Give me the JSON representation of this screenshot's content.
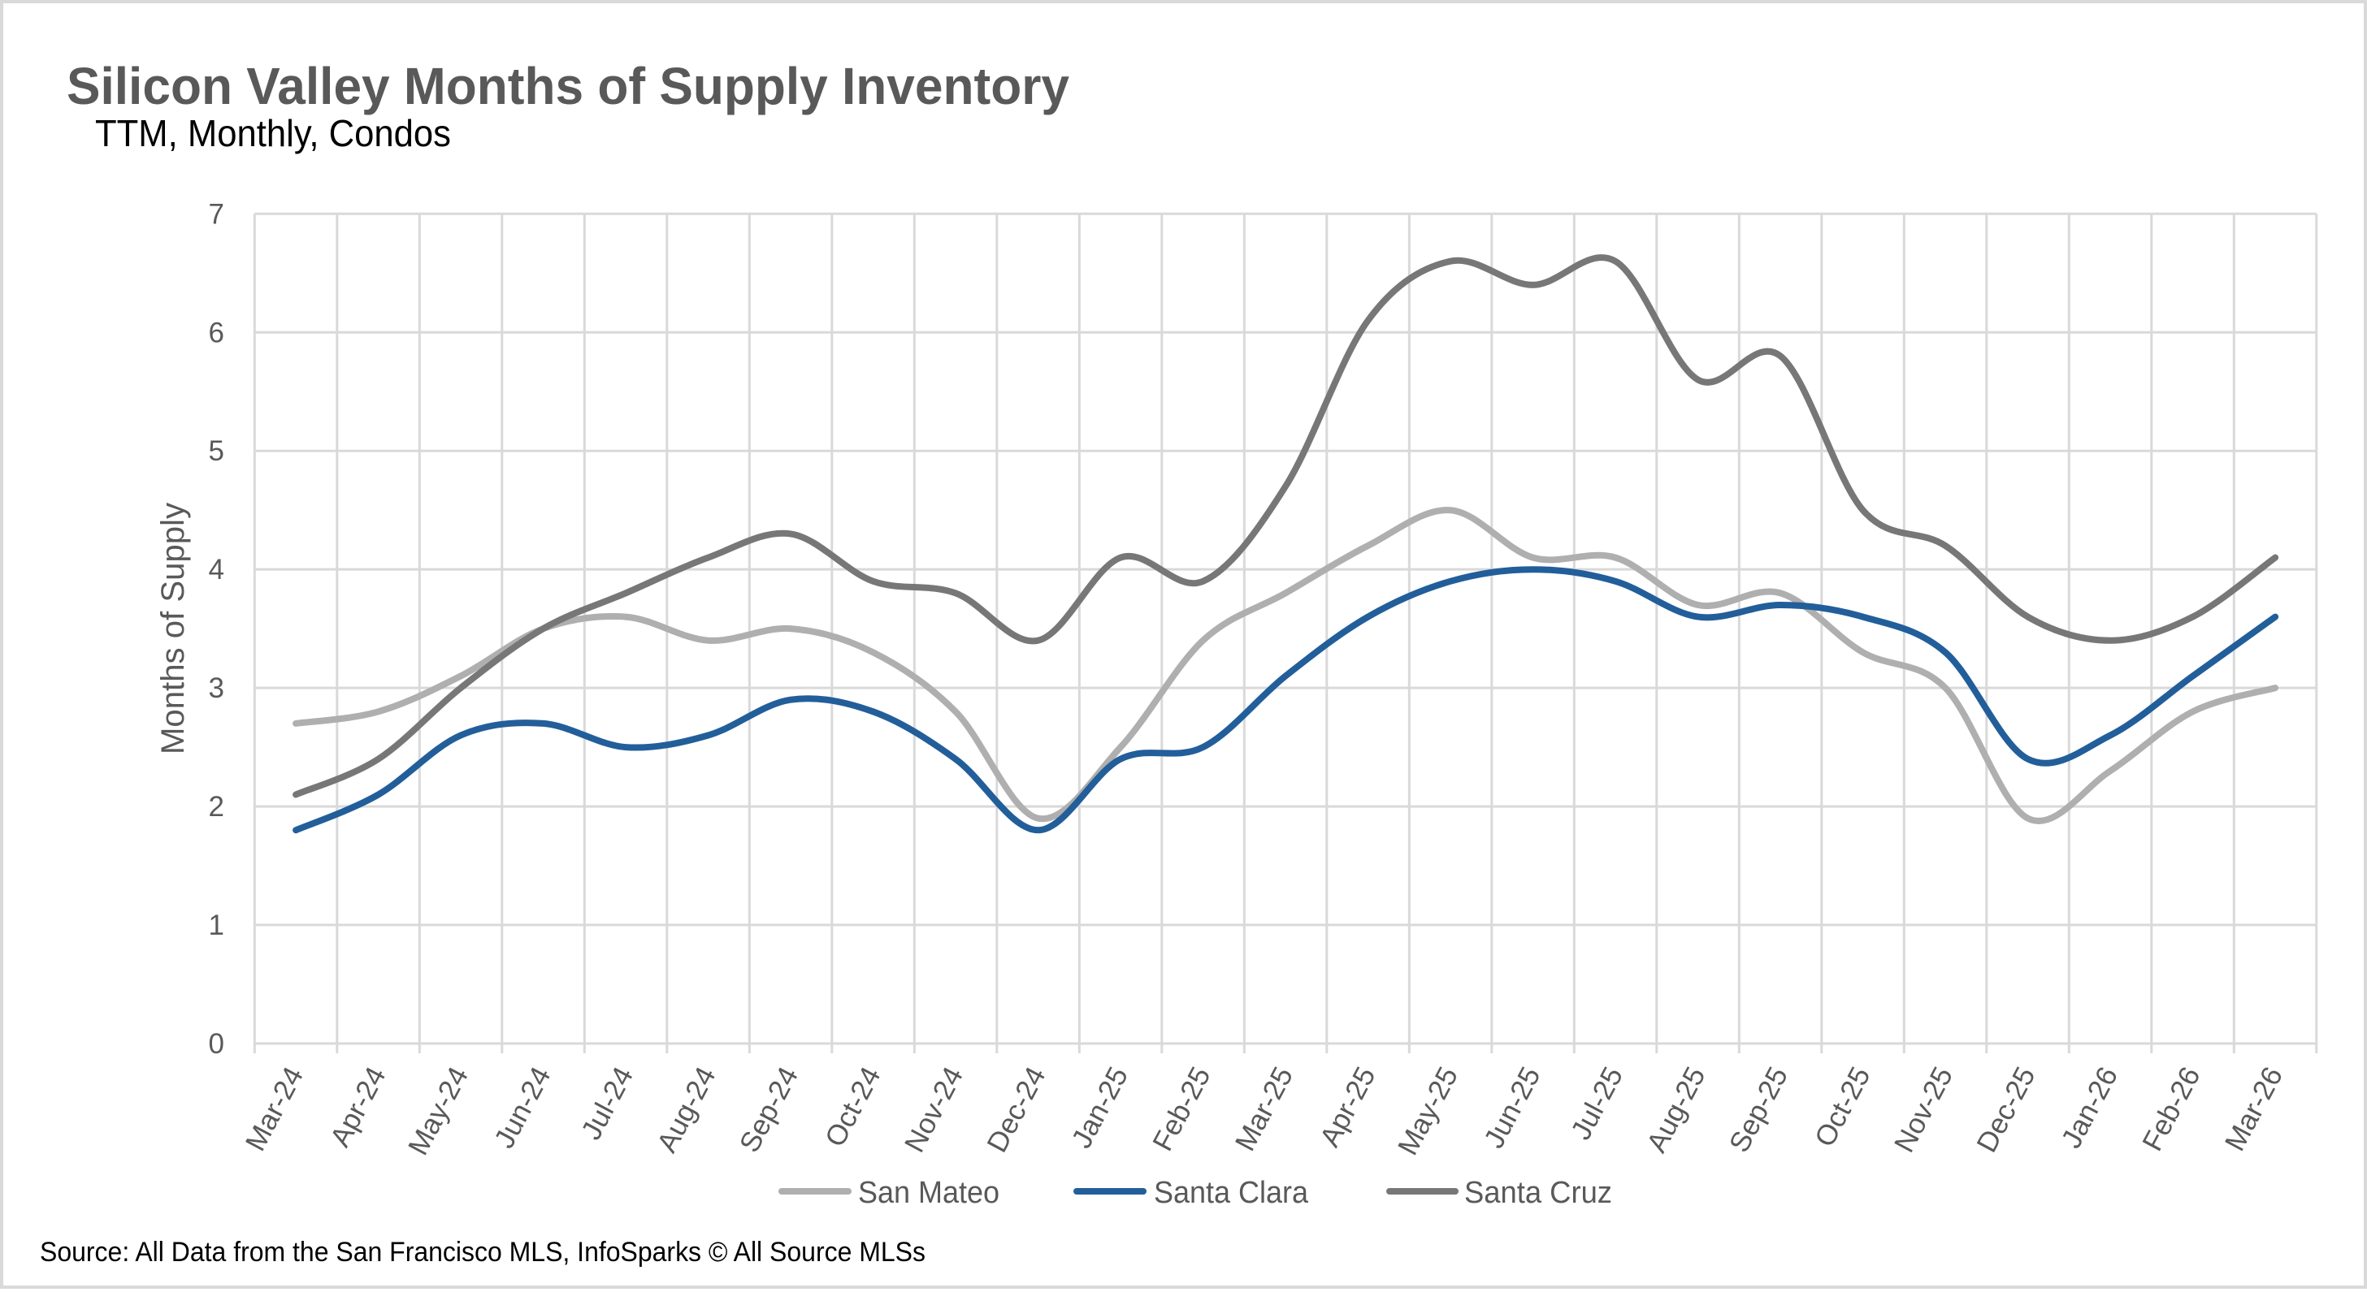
{
  "chart_data": {
    "type": "line",
    "title": "Silicon Valley Months of Supply Inventory",
    "subtitle": "TTM, Monthly, Condos",
    "xlabel": "",
    "ylabel": "Months of Supply",
    "ylim": [
      0,
      7
    ],
    "yticks": [
      "0",
      "1",
      "2",
      "3",
      "4",
      "5",
      "6",
      "7"
    ],
    "grid": true,
    "legend_position": "bottom",
    "categories": [
      "Mar-24",
      "Apr-24",
      "May-24",
      "Jun-24",
      "Jul-24",
      "Aug-24",
      "Sep-24",
      "Oct-24",
      "Nov-24",
      "Dec-24",
      "Jan-25",
      "Feb-25",
      "Mar-25",
      "Apr-25",
      "May-25",
      "Jun-25",
      "Jul-25",
      "Aug-25",
      "Sep-25",
      "Oct-25",
      "Nov-25",
      "Dec-25",
      "Jan-26",
      "Feb-26",
      "Mar-26"
    ],
    "series": [
      {
        "name": "San Mateo",
        "color": "#afafaf",
        "values": [
          2.7,
          2.8,
          3.1,
          3.5,
          3.6,
          3.4,
          3.5,
          3.3,
          2.8,
          1.9,
          2.5,
          3.4,
          3.8,
          4.2,
          4.5,
          4.1,
          4.1,
          3.7,
          3.8,
          3.3,
          3.0,
          1.9,
          2.3,
          2.8,
          3.0
        ]
      },
      {
        "name": "Santa Clara",
        "color": "#225e9a",
        "values": [
          1.8,
          2.1,
          2.6,
          2.7,
          2.5,
          2.6,
          2.9,
          2.8,
          2.4,
          1.8,
          2.4,
          2.5,
          3.1,
          3.6,
          3.9,
          4.0,
          3.9,
          3.6,
          3.7,
          3.6,
          3.3,
          2.4,
          2.6,
          3.1,
          3.6
        ]
      },
      {
        "name": "Santa Cruz",
        "color": "#777777",
        "values": [
          2.1,
          2.4,
          3.0,
          3.5,
          3.8,
          4.1,
          4.3,
          3.9,
          3.8,
          3.4,
          4.1,
          3.9,
          4.7,
          6.1,
          6.6,
          6.4,
          6.6,
          5.6,
          5.8,
          4.5,
          4.2,
          3.6,
          3.4,
          3.6,
          4.1
        ]
      }
    ],
    "source": "Source: All Data from the San Francisco MLS, InfoSparks © All Source MLSs"
  }
}
